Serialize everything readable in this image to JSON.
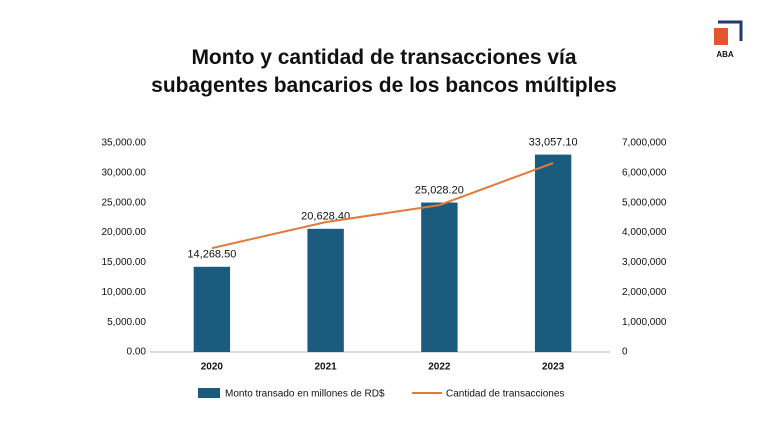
{
  "brand": "ABA",
  "chart_data": {
    "type": "bar_line",
    "title": "Monto y cantidad de transacciones vía subagentes bancarios de los bancos múltiples",
    "categories": [
      "2020",
      "2021",
      "2022",
      "2023"
    ],
    "series": [
      {
        "name": "Monto transado en millones de RD$",
        "type": "bar",
        "color": "#1a5b7e",
        "values": [
          14268.5,
          20628.4,
          25028.2,
          33057.1
        ],
        "value_labels": [
          "14,268.50",
          "20,628.40",
          "25,028.20",
          "33,057.10"
        ]
      },
      {
        "name": "Cantidad de transacciones",
        "type": "line",
        "axis": "y2",
        "color": "#e07b3c",
        "values": [
          3480000,
          4350000,
          4920000,
          6330000
        ]
      }
    ],
    "ylim": [
      0,
      35000
    ],
    "yticks": [
      {
        "value": 0,
        "label": "0.00"
      },
      {
        "value": 5000,
        "label": "5,000.00"
      },
      {
        "value": 10000,
        "label": "10,000.00"
      },
      {
        "value": 15000,
        "label": "15,000.00"
      },
      {
        "value": 20000,
        "label": "20,000.00"
      },
      {
        "value": 25000,
        "label": "25,000.00"
      },
      {
        "value": 30000,
        "label": "30,000.00"
      },
      {
        "value": 35000,
        "label": "35,000.00"
      }
    ],
    "y2lim": [
      0,
      7000000
    ],
    "y2ticks": [
      0,
      {
        "value": 1000000,
        "label": "1,000,000"
      },
      {
        "value": 2000000,
        "label": "2,000,000"
      },
      {
        "value": 3000000,
        "label": "3,000,000"
      },
      {
        "value": 4000000,
        "label": "4,000,000"
      },
      {
        "value": 5000000,
        "label": "5,000,000"
      },
      {
        "value": 6000000,
        "label": "6,000,000"
      },
      {
        "value": 7000000,
        "label": "7,000,000"
      }
    ],
    "grid": false,
    "legend": "bottom"
  }
}
